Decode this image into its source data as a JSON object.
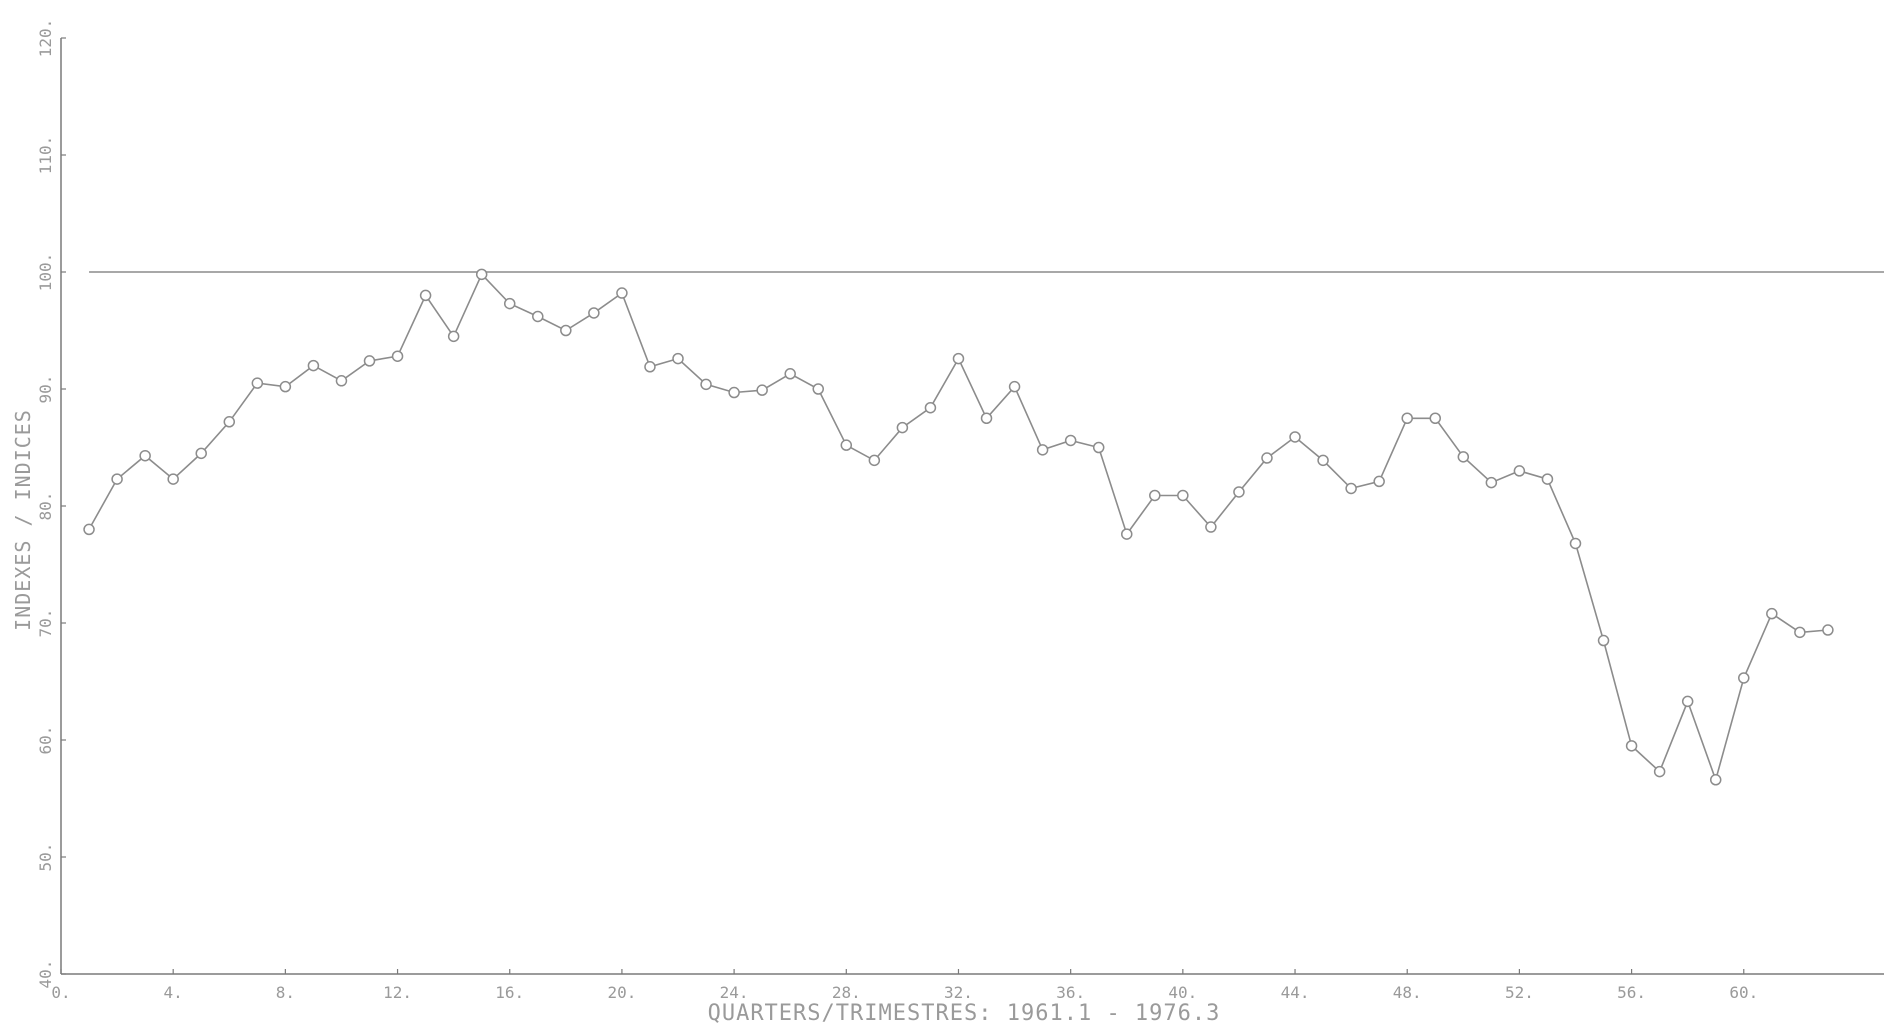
{
  "chart_data": {
    "type": "line",
    "xlabel": "QUARTERS/TRIMESTRES: 1961.1 - 1976.3",
    "ylabel": "INDEXES / INDICES",
    "xlim": [
      0,
      65
    ],
    "ylim": [
      40,
      120
    ],
    "x_ticks": [
      0,
      4,
      8,
      12,
      16,
      20,
      24,
      28,
      32,
      36,
      40,
      44,
      48,
      52,
      56,
      60
    ],
    "x_tick_labels": [
      "0.",
      "4.",
      "8.",
      "12.",
      "16.",
      "20.",
      "24.",
      "28.",
      "32.",
      "36.",
      "40.",
      "44.",
      "48.",
      "52.",
      "56.",
      "60."
    ],
    "y_ticks": [
      40,
      50,
      60,
      70,
      80,
      90,
      100,
      110,
      120
    ],
    "y_tick_labels": [
      "40.",
      "50.",
      "60.",
      "70.",
      "80.",
      "90.",
      "100.",
      "110.",
      "120."
    ],
    "reference_line": 100,
    "grid": false,
    "marker": "circle",
    "series": [
      {
        "x": [
          1,
          2,
          3,
          4,
          5,
          6,
          7,
          8,
          9,
          10,
          11,
          12,
          13,
          14,
          15,
          16,
          17,
          18,
          19,
          20,
          21,
          22,
          23,
          24,
          25,
          26,
          27,
          28,
          29,
          30,
          31,
          32,
          33,
          34,
          35,
          36,
          37,
          38,
          39,
          40,
          41,
          42,
          43,
          44,
          45,
          46,
          47,
          48,
          49,
          50,
          51,
          52,
          53,
          54,
          55,
          56,
          57,
          58,
          59,
          60,
          61,
          62,
          63
        ],
        "values": [
          78.0,
          82.3,
          84.3,
          82.3,
          84.5,
          87.2,
          90.5,
          90.2,
          92.0,
          90.7,
          92.4,
          92.8,
          98.0,
          94.5,
          99.8,
          97.3,
          96.2,
          95.0,
          96.5,
          98.2,
          91.9,
          92.6,
          90.4,
          89.7,
          89.9,
          91.3,
          90.0,
          85.2,
          83.9,
          86.7,
          88.4,
          92.6,
          87.5,
          90.2,
          84.8,
          85.6,
          85.0,
          77.6,
          80.9,
          80.9,
          78.2,
          81.2,
          84.1,
          85.9,
          83.9,
          81.5,
          82.1,
          87.5,
          87.5,
          84.2,
          82.0,
          83.0,
          82.3,
          76.8,
          68.5,
          59.5,
          57.3,
          63.3,
          56.6,
          65.3,
          70.8,
          69.2,
          69.4
        ]
      }
    ]
  },
  "colors": {
    "line": "#8c8c8c",
    "axis": "#7a7a7a",
    "text": "#9a9a9a",
    "marker_fill": "#ffffff"
  }
}
